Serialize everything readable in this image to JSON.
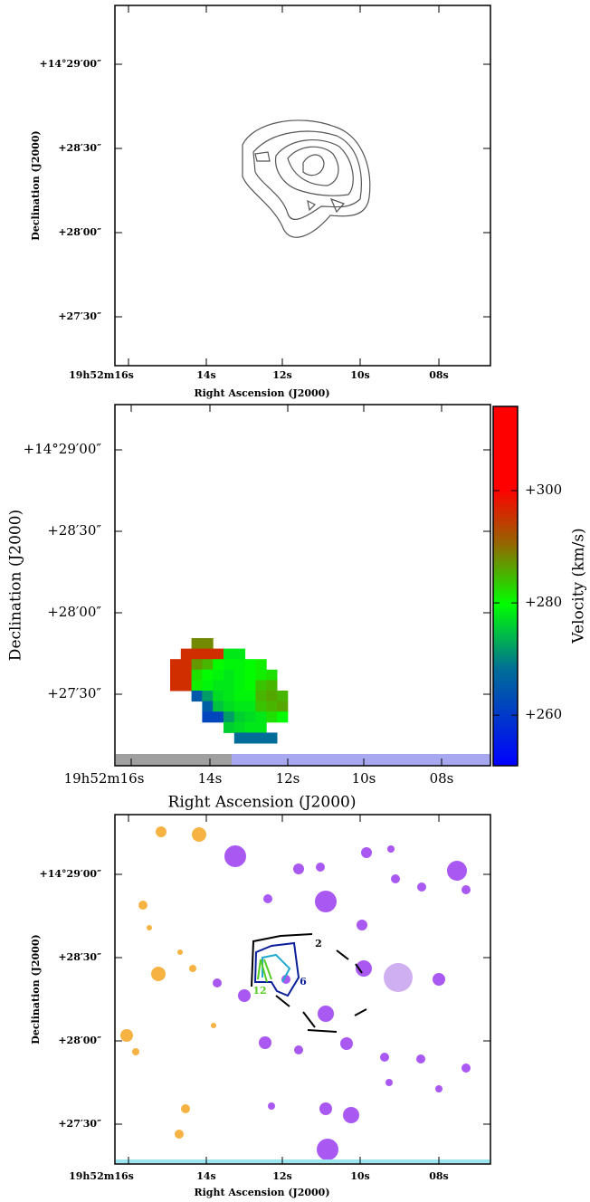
{
  "figure": {
    "panels": [
      {
        "xlabel": "Right Ascension (J2000)",
        "ylabel": "Declination (J2000)",
        "xticks": [
          "19h52m16s",
          "14s",
          "12s",
          "10s",
          "08s"
        ],
        "yticks": [
          "+14°29′00″",
          "+28′30″",
          "+28′00″",
          "+27′30″"
        ]
      },
      {
        "xlabel": "Right Ascension (J2000)",
        "ylabel": "Declination (J2000)",
        "xticks": [
          "19h52m16s",
          "14s",
          "12s",
          "10s",
          "08s"
        ],
        "yticks": [
          "+14°29′00″",
          "+28′30″",
          "+28′00″",
          "+27′30″"
        ],
        "colorbar": {
          "label": "Velocity (km/s)",
          "vlim": [
            251,
            315
          ],
          "ticks": [
            {
              "value": 300,
              "label": "+300"
            },
            {
              "value": 280,
              "label": "+280"
            },
            {
              "value": 260,
              "label": "+260"
            }
          ]
        },
        "velocity_map": [
          [
            null,
            null,
            288,
            288,
            null,
            null,
            null,
            null,
            null,
            null,
            null,
            null,
            null
          ],
          [
            null,
            296,
            296,
            296,
            296,
            278,
            278,
            null,
            null,
            null,
            null,
            null,
            null
          ],
          [
            296,
            296,
            287,
            285,
            280,
            279,
            279,
            280,
            281,
            null,
            null,
            null,
            null
          ],
          [
            296,
            296,
            282,
            280,
            279,
            278,
            279,
            280,
            281,
            282,
            null,
            null,
            null
          ],
          [
            296,
            296,
            281,
            279,
            278,
            278,
            279,
            280,
            284,
            285,
            null,
            null,
            null
          ],
          [
            null,
            null,
            265,
            272,
            277,
            278,
            279,
            279,
            285,
            286,
            285,
            null,
            null
          ],
          [
            null,
            null,
            null,
            266,
            275,
            277,
            278,
            278,
            284,
            285,
            286,
            null,
            null
          ],
          [
            null,
            null,
            null,
            262,
            262,
            272,
            276,
            277,
            278,
            282,
            280,
            null,
            null
          ],
          [
            null,
            null,
            null,
            null,
            null,
            276,
            277,
            278,
            278,
            null,
            null,
            null,
            null
          ],
          [
            null,
            null,
            null,
            null,
            null,
            null,
            268,
            268,
            268,
            268,
            null,
            null,
            null
          ]
        ]
      },
      {
        "xlabel": "Right Ascension (J2000)",
        "ylabel": "Declination (J2000)",
        "xticks": [
          "19h52m16s",
          "14s",
          "12s",
          "10s",
          "08s"
        ],
        "yticks": [
          "+14°29′00″",
          "+28′30″",
          "+28′00″",
          "+27′30″"
        ],
        "contour_labels": [
          "2",
          "6",
          "12"
        ]
      }
    ]
  }
}
